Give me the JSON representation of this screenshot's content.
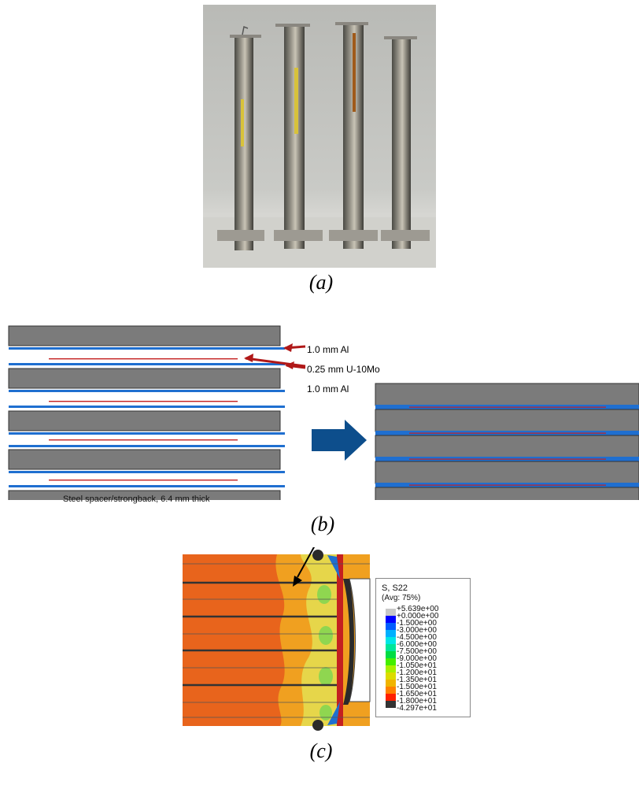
{
  "panels": {
    "a": {
      "caption": "(a)"
    },
    "b": {
      "caption": "(b)",
      "labels": {
        "al_top": "1.0 mm Al",
        "u10mo": "0.25 mm U-10Mo",
        "al_bottom": "1.0 mm Al",
        "spacer": "Steel spacer/strongback, 6.4 mm thick"
      },
      "colors": {
        "steel": "#7b7b7b",
        "aluminum": "#1f6fd0",
        "fuel": "#c42020",
        "arrow_red": "#b01818",
        "arrow_blue": "#0d4e8c"
      }
    },
    "c": {
      "caption": "(c)",
      "legend": {
        "title": "S, S22",
        "subtitle": "(Avg: 75%)",
        "entries": [
          {
            "value": "+5.639e+00",
            "color": "#c8c8c8"
          },
          {
            "value": "+0.000e+00",
            "color": "#0000ff"
          },
          {
            "value": "-1.500e+00",
            "color": "#005cff"
          },
          {
            "value": "-3.000e+00",
            "color": "#00b0ff"
          },
          {
            "value": "-4.500e+00",
            "color": "#00e6e6"
          },
          {
            "value": "-6.000e+00",
            "color": "#00e69a"
          },
          {
            "value": "-7.500e+00",
            "color": "#00dc44"
          },
          {
            "value": "-9.000e+00",
            "color": "#44ee00"
          },
          {
            "value": "-1.050e+01",
            "color": "#a8ef00"
          },
          {
            "value": "-1.200e+01",
            "color": "#dcdc00"
          },
          {
            "value": "-1.350e+01",
            "color": "#f0b400"
          },
          {
            "value": "-1.500e+01",
            "color": "#ff8000"
          },
          {
            "value": "-1.650e+01",
            "color": "#ff2000"
          },
          {
            "value": "-1.800e+01",
            "color": "#333333"
          }
        ],
        "last_value": "-4.297e+01"
      },
      "colors": {
        "field_main": "#e8641c",
        "field_light": "#f0a020",
        "field_yellow": "#e6d64a",
        "field_green": "#8fd650",
        "contour_dark": "#2a2a2a"
      }
    }
  }
}
